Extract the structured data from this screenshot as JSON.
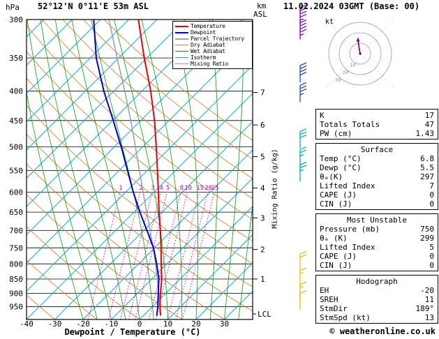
{
  "header": {
    "pressure_unit": "hPa",
    "station": "52°12'N 0°11'E 53m ASL",
    "datetime": "11.02.2024 03GMT (Base: 00)",
    "altitude_unit": "km",
    "altitude_ref": "ASL"
  },
  "labels": {
    "x_axis": "Dewpoint / Temperature (°C)",
    "mixing_axis": "Mixing Ratio (g/kg)",
    "lcl": "LCL",
    "hodograph_unit": "kt",
    "copyright": "© weatheronline.co.uk"
  },
  "legend": [
    {
      "label": "Temperature",
      "color": "#e60000",
      "style": "solid",
      "width": 2
    },
    {
      "label": "Dewpoint",
      "color": "#0000cc",
      "style": "solid",
      "width": 2
    },
    {
      "label": "Parcel Trajectory",
      "color": "#99a0b0",
      "style": "solid",
      "width": 2
    },
    {
      "label": "Dry Adiabat",
      "color": "#d2862a",
      "style": "solid",
      "width": 1
    },
    {
      "label": "Wet Adiabat",
      "color": "#00a000",
      "style": "solid",
      "width": 1
    },
    {
      "label": "Isotherm",
      "color": "#00b0d8",
      "style": "solid",
      "width": 1
    },
    {
      "label": "Mixing Ratio",
      "color": "#cc00bb",
      "style": "dotted",
      "width": 1
    }
  ],
  "indices_table": {
    "sections": [
      {
        "title": null,
        "rows": [
          [
            "K",
            "17"
          ],
          [
            "Totals Totals",
            "47"
          ],
          [
            "PW (cm)",
            "1.43"
          ]
        ]
      },
      {
        "title": "Surface",
        "rows": [
          [
            "Temp (°C)",
            "6.8"
          ],
          [
            "Dewp (°C)",
            "5.5"
          ],
          [
            "θₑ(K)",
            "297"
          ],
          [
            "Lifted Index",
            "7"
          ],
          [
            "CAPE (J)",
            "0"
          ],
          [
            "CIN (J)",
            "0"
          ]
        ]
      },
      {
        "title": "Most Unstable",
        "rows": [
          [
            "Pressure (mb)",
            "750"
          ],
          [
            "θₑ (K)",
            "299"
          ],
          [
            "Lifted Index",
            "5"
          ],
          [
            "CAPE (J)",
            "0"
          ],
          [
            "CIN (J)",
            "0"
          ]
        ]
      },
      {
        "title": "Hodograph",
        "rows": [
          [
            "EH",
            "-20"
          ],
          [
            "SREH",
            "11"
          ],
          [
            "StmDir",
            "189°"
          ],
          [
            "StmSpd (kt)",
            "13"
          ]
        ]
      }
    ]
  },
  "hodograph": {
    "unit": "kt",
    "rings_kt": [
      10,
      20,
      30
    ],
    "trace_uv_kt": [
      [
        0,
        0
      ],
      [
        -1,
        6
      ],
      [
        -2,
        13
      ]
    ]
  },
  "chart_data": {
    "type": "skewt-log-p",
    "title": "52°12'N 0°11'E 53m ASL",
    "pressure_axis": {
      "unit": "hPa",
      "min": 300,
      "max": 1000,
      "ticks": [
        300,
        350,
        400,
        450,
        500,
        550,
        600,
        650,
        700,
        750,
        800,
        850,
        900,
        950
      ]
    },
    "temp_axis": {
      "unit": "°C",
      "min": -40,
      "max": 40,
      "ticks": [
        -40,
        -30,
        -20,
        -10,
        0,
        10,
        20,
        30
      ],
      "label": "Dewpoint / Temperature (°C)"
    },
    "km_ticks": [
      {
        "km": 1,
        "p": 850
      },
      {
        "km": 2,
        "p": 755
      },
      {
        "km": 3,
        "p": 665
      },
      {
        "km": 4,
        "p": 590
      },
      {
        "km": 5,
        "p": 520
      },
      {
        "km": 6,
        "p": 458
      },
      {
        "km": 7,
        "p": 402
      }
    ],
    "lcl_p": 978,
    "mixing_ratio_values": [
      1,
      2,
      3,
      4,
      5,
      8,
      10,
      15,
      20,
      25
    ],
    "dry_adiabats_c": [
      -30,
      -15,
      0,
      15,
      30,
      45,
      60,
      75,
      90,
      105,
      120,
      135,
      150,
      165
    ],
    "wet_adiabats_c": [
      -20,
      -15,
      -10,
      -5,
      0,
      5,
      10,
      15,
      20,
      25,
      30,
      35,
      40
    ],
    "isotherms_c": [
      -150,
      -140,
      -130,
      -120,
      -110,
      -100,
      -90,
      -80,
      -70,
      -60,
      -50,
      -40,
      -30,
      -20,
      -10,
      0,
      10,
      20,
      30,
      40
    ],
    "colors": {
      "temperature": "#e60000",
      "dewpoint": "#0000cc",
      "parcel": "#99a0b0",
      "dry_adiabat": "#d2862a",
      "wet_adiabat": "#00a000",
      "isotherm": "#00b0d8",
      "mixing": "#cc00bb",
      "grid": "#000000"
    },
    "temperature_profile": [
      [
        985,
        6.8
      ],
      [
        950,
        5.2
      ],
      [
        925,
        4.2
      ],
      [
        900,
        3.2
      ],
      [
        850,
        1.4
      ],
      [
        800,
        -1.2
      ],
      [
        750,
        -3.8
      ],
      [
        700,
        -6.8
      ],
      [
        650,
        -10.2
      ],
      [
        600,
        -13.6
      ],
      [
        550,
        -17.4
      ],
      [
        500,
        -21.6
      ],
      [
        450,
        -26.4
      ],
      [
        400,
        -32.4
      ],
      [
        350,
        -40.0
      ],
      [
        300,
        -48.2
      ]
    ],
    "dewpoint_profile": [
      [
        985,
        5.5
      ],
      [
        950,
        4.4
      ],
      [
        925,
        3.4
      ],
      [
        900,
        2.4
      ],
      [
        850,
        0.4
      ],
      [
        800,
        -2.8
      ],
      [
        750,
        -6.5
      ],
      [
        700,
        -11.5
      ],
      [
        650,
        -17.0
      ],
      [
        600,
        -22.5
      ],
      [
        550,
        -28.0
      ],
      [
        500,
        -34.0
      ],
      [
        450,
        -41.0
      ],
      [
        400,
        -49.0
      ],
      [
        350,
        -57.0
      ],
      [
        300,
        -64.0
      ]
    ],
    "parcel_profile": [
      [
        985,
        6.8
      ],
      [
        960,
        5.6
      ],
      [
        925,
        3.9
      ],
      [
        900,
        2.6
      ],
      [
        850,
        -0.2
      ],
      [
        800,
        -3.2
      ],
      [
        750,
        -6.6
      ],
      [
        700,
        -10.4
      ],
      [
        650,
        -14.6
      ],
      [
        600,
        -19.0
      ],
      [
        550,
        -23.8
      ],
      [
        500,
        -29.0
      ],
      [
        450,
        -34.8
      ],
      [
        400,
        -41.6
      ],
      [
        350,
        -49.6
      ],
      [
        300,
        -58.6
      ]
    ],
    "wind_barbs": [
      {
        "p": 306,
        "speed_kt": 45,
        "color": "#7700bb"
      },
      {
        "p": 325,
        "speed_kt": 45,
        "color": "#7700bb"
      },
      {
        "p": 386,
        "speed_kt": 40,
        "color": "#2244cc"
      },
      {
        "p": 418,
        "speed_kt": 35,
        "color": "#2244cc"
      },
      {
        "p": 503,
        "speed_kt": 30,
        "color": "#00aacc"
      },
      {
        "p": 541,
        "speed_kt": 25,
        "color": "#00aacc"
      },
      {
        "p": 575,
        "speed_kt": 25,
        "color": "#00aacc"
      },
      {
        "p": 823,
        "speed_kt": 20,
        "color": "#cccc00"
      },
      {
        "p": 879,
        "speed_kt": 15,
        "color": "#cccc00"
      },
      {
        "p": 930,
        "speed_kt": 15,
        "color": "#cccc00"
      },
      {
        "p": 963,
        "speed_kt": 10,
        "color": "#cccc00"
      }
    ]
  }
}
